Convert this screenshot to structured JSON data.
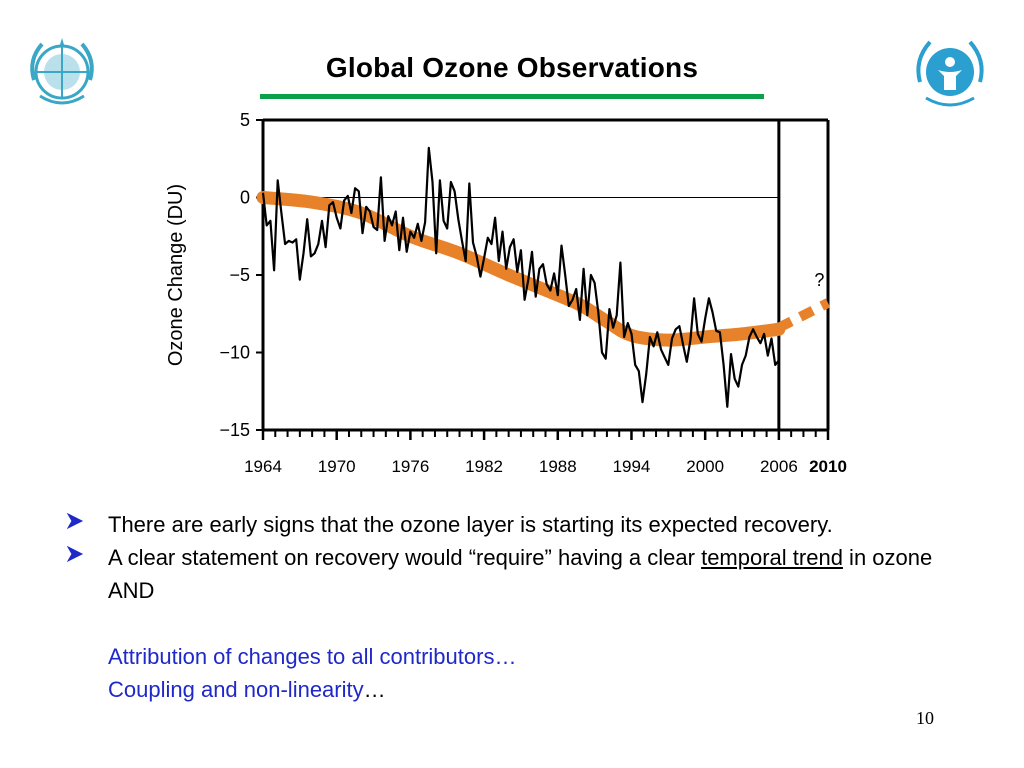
{
  "slide": {
    "title": "Global Ozone Observations",
    "page_number": "10",
    "logos": {
      "left": "wmo-emblem",
      "right": "unep-emblem"
    }
  },
  "bullets": [
    {
      "text": "There are early signs that the ozone layer is starting its expected recovery."
    },
    {
      "text_before": "A clear statement on recovery would “require” having a clear ",
      "underlined": "temporal trend",
      "text_after": " in ozone  AND"
    }
  ],
  "blue_lines": [
    {
      "text": "Attribution of changes to all contributors…",
      "tail": ""
    },
    {
      "text": "Coupling and non-linearity",
      "tail": "…"
    }
  ],
  "colors": {
    "accent_rule": "#0aa14a",
    "trend_band": "#e8822a",
    "blue_text": "#1f28c8"
  },
  "chart_data": {
    "type": "line",
    "title": "",
    "xlabel": "",
    "ylabel": "Ozone Change (DU)",
    "xlim": [
      1964,
      2010
    ],
    "ylim": [
      -15,
      5
    ],
    "x_ticks": [
      "1964",
      "1970",
      "1976",
      "1982",
      "1988",
      "1994",
      "2000",
      "2006",
      "2010"
    ],
    "y_ticks": [
      "5",
      "0",
      "−5",
      "−10",
      "−15"
    ],
    "grid": false,
    "annotations": [
      "?"
    ],
    "series": [
      {
        "kind": "observations",
        "x": [
          1964.0,
          1964.3,
          1964.6,
          1964.9,
          1965.2,
          1965.5,
          1965.8,
          1966.1,
          1966.4,
          1966.7,
          1967.0,
          1967.3,
          1967.6,
          1967.9,
          1968.2,
          1968.5,
          1968.8,
          1969.1,
          1969.4,
          1969.7,
          1970.0,
          1970.3,
          1970.6,
          1970.9,
          1971.2,
          1971.5,
          1971.8,
          1972.1,
          1972.4,
          1972.7,
          1973.0,
          1973.3,
          1973.6,
          1973.9,
          1974.2,
          1974.5,
          1974.8,
          1975.1,
          1975.4,
          1975.7,
          1976.0,
          1976.3,
          1976.6,
          1976.9,
          1977.2,
          1977.5,
          1977.8,
          1978.1,
          1978.4,
          1978.7,
          1979.0,
          1979.3,
          1979.6,
          1979.9,
          1980.2,
          1980.5,
          1980.8,
          1981.1,
          1981.4,
          1981.7,
          1982.0,
          1982.3,
          1982.6,
          1982.9,
          1983.2,
          1983.5,
          1983.8,
          1984.1,
          1984.4,
          1984.7,
          1985.0,
          1985.3,
          1985.6,
          1985.9,
          1986.2,
          1986.5,
          1986.8,
          1987.1,
          1987.4,
          1987.7,
          1988.0,
          1988.3,
          1988.6,
          1988.9,
          1989.2,
          1989.5,
          1989.8,
          1990.1,
          1990.4,
          1990.7,
          1991.0,
          1991.3,
          1991.6,
          1991.9,
          1992.2,
          1992.5,
          1992.8,
          1993.1,
          1993.4,
          1993.7,
          1994.0,
          1994.3,
          1994.6,
          1994.9,
          1995.2,
          1995.5,
          1995.8,
          1996.1,
          1996.4,
          1996.7,
          1997.0,
          1997.3,
          1997.6,
          1997.9,
          1998.2,
          1998.5,
          1998.8,
          1999.1,
          1999.4,
          1999.7,
          2000.0,
          2000.3,
          2000.6,
          2000.9,
          2001.2,
          2001.5,
          2001.8,
          2002.1,
          2002.4,
          2002.7,
          2003.0,
          2003.3,
          2003.6,
          2003.9,
          2004.2,
          2004.5,
          2004.8,
          2005.1,
          2005.4,
          2005.7,
          2006.0
        ],
        "y": [
          0.3,
          -1.8,
          -1.5,
          -4.7,
          1.1,
          -1.0,
          -3.0,
          -2.8,
          -2.9,
          -2.7,
          -5.3,
          -3.6,
          -1.4,
          -3.8,
          -3.6,
          -3.0,
          -1.5,
          -3.2,
          -0.5,
          -0.3,
          -1.3,
          -2.0,
          -0.2,
          0.1,
          -1.0,
          0.6,
          0.4,
          -2.3,
          -0.6,
          -0.9,
          -1.9,
          -2.1,
          1.3,
          -2.8,
          -1.2,
          -1.8,
          -0.9,
          -3.4,
          -1.3,
          -3.5,
          -2.2,
          -2.6,
          -1.7,
          -2.8,
          -1.6,
          3.2,
          1.0,
          -3.6,
          1.1,
          -1.5,
          -2.0,
          1.0,
          0.4,
          -1.4,
          -2.8,
          -4.1,
          0.9,
          -2.9,
          -3.8,
          -5.1,
          -3.9,
          -2.6,
          -3.0,
          -1.3,
          -4.1,
          -2.2,
          -4.6,
          -3.2,
          -2.7,
          -4.8,
          -3.4,
          -6.6,
          -5.3,
          -3.5,
          -6.4,
          -4.6,
          -4.3,
          -5.6,
          -6.0,
          -4.9,
          -6.3,
          -3.1,
          -5.0,
          -7.0,
          -6.6,
          -5.9,
          -7.9,
          -4.6,
          -7.6,
          -5.0,
          -5.5,
          -7.4,
          -10.0,
          -10.4,
          -7.2,
          -8.4,
          -7.6,
          -4.2,
          -9.0,
          -8.1,
          -8.8,
          -10.8,
          -11.2,
          -13.2,
          -11.4,
          -9.0,
          -9.6,
          -8.7,
          -9.8,
          -10.3,
          -10.8,
          -9.1,
          -8.5,
          -8.3,
          -9.5,
          -10.6,
          -9.2,
          -6.5,
          -8.8,
          -9.3,
          -7.8,
          -6.5,
          -7.4,
          -8.6,
          -8.7,
          -10.8,
          -13.5,
          -10.1,
          -11.7,
          -12.2,
          -10.8,
          -10.2,
          -9.0,
          -8.5,
          -9.0,
          -9.4,
          -8.8,
          -10.2,
          -9.1,
          -10.8,
          -10.5
        ],
        "label": ""
      },
      {
        "kind": "trend",
        "x": [
          1964,
          1968,
          1972,
          1976,
          1980,
          1984,
          1988,
          1990,
          1992,
          1994,
          1997,
          2000,
          2003,
          2006
        ],
        "y": [
          0,
          -0.3,
          -1.0,
          -2.5,
          -3.6,
          -5.0,
          -6.3,
          -7.0,
          -8.0,
          -8.9,
          -9.2,
          -9.0,
          -8.8,
          -8.5
        ],
        "label": ""
      },
      {
        "kind": "projection",
        "x": [
          2006,
          2010
        ],
        "y": [
          -8.4,
          -6.8
        ],
        "label": ""
      }
    ]
  }
}
